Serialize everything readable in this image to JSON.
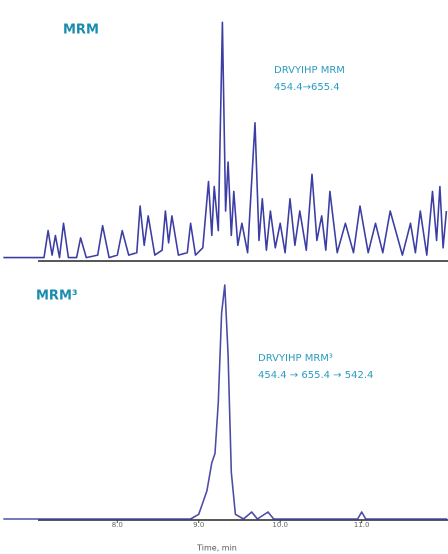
{
  "chart_data": [
    {
      "type": "line",
      "title": "MRM",
      "annotation": [
        "DRVYIHP MRM",
        "454.4→655.4"
      ],
      "color": "#3c3ea3",
      "xlim": [
        6.56,
        12.06
      ],
      "ylim": [
        0,
        100
      ],
      "x": [
        6.6,
        7.1,
        7.15,
        7.2,
        7.24,
        7.29,
        7.34,
        7.4,
        7.5,
        7.55,
        7.62,
        7.76,
        7.82,
        7.9,
        8.0,
        8.06,
        8.14,
        8.24,
        8.28,
        8.33,
        8.38,
        8.46,
        8.55,
        8.59,
        8.63,
        8.67,
        8.75,
        8.86,
        8.9,
        8.96,
        9.05,
        9.12,
        9.16,
        9.19,
        9.24,
        9.29,
        9.33,
        9.36,
        9.4,
        9.43,
        9.48,
        9.53,
        9.6,
        9.69,
        9.74,
        9.78,
        9.83,
        9.88,
        9.94,
        10.0,
        10.06,
        10.12,
        10.18,
        10.24,
        10.32,
        10.39,
        10.45,
        10.51,
        10.56,
        10.61,
        10.7,
        10.8,
        10.9,
        10.98,
        11.08,
        11.17,
        11.26,
        11.35,
        11.5,
        11.6,
        11.66,
        11.72,
        11.8,
        11.87,
        11.92,
        11.96,
        12.0,
        12.04
      ],
      "values": [
        1,
        1,
        12,
        2,
        10,
        1,
        15,
        1,
        1,
        9,
        1,
        2,
        14,
        1,
        2,
        12,
        2,
        3,
        22,
        6,
        18,
        2,
        4,
        20,
        7,
        18,
        2,
        3,
        15,
        2,
        5,
        32,
        10,
        30,
        12,
        97,
        20,
        40,
        10,
        28,
        6,
        15,
        3,
        56,
        8,
        25,
        4,
        20,
        5,
        15,
        3,
        25,
        6,
        20,
        4,
        35,
        8,
        18,
        4,
        28,
        3,
        15,
        3,
        22,
        3,
        15,
        3,
        20,
        2,
        15,
        3,
        20,
        2,
        28,
        8,
        30,
        5,
        20
      ]
    },
    {
      "type": "line",
      "title": "MRM³",
      "annotation": [
        "DRVYIHP MRM³",
        "454.4 → 655.4 → 542.4"
      ],
      "color": "#4b4ba8",
      "xlim": [
        6.56,
        12.06
      ],
      "ylim": [
        0,
        100
      ],
      "xticks": [
        {
          "value": 8,
          "label": "8.0"
        },
        {
          "value": 9,
          "label": "9.0"
        },
        {
          "value": 10,
          "label": "10.0"
        },
        {
          "value": 11,
          "label": "11.0"
        }
      ],
      "xlabel": "Time, min",
      "x": [
        6.6,
        8.9,
        9.0,
        9.04,
        9.1,
        9.16,
        9.2,
        9.24,
        9.28,
        9.32,
        9.36,
        9.4,
        9.45,
        9.55,
        9.65,
        9.72,
        9.85,
        9.92,
        10.5,
        10.95,
        11.0,
        11.05,
        12.05
      ],
      "values": [
        0,
        0,
        2,
        6,
        12,
        24,
        28,
        50,
        88,
        100,
        70,
        20,
        2,
        0,
        3,
        0,
        3,
        0,
        0,
        0,
        3,
        0,
        0
      ]
    }
  ]
}
